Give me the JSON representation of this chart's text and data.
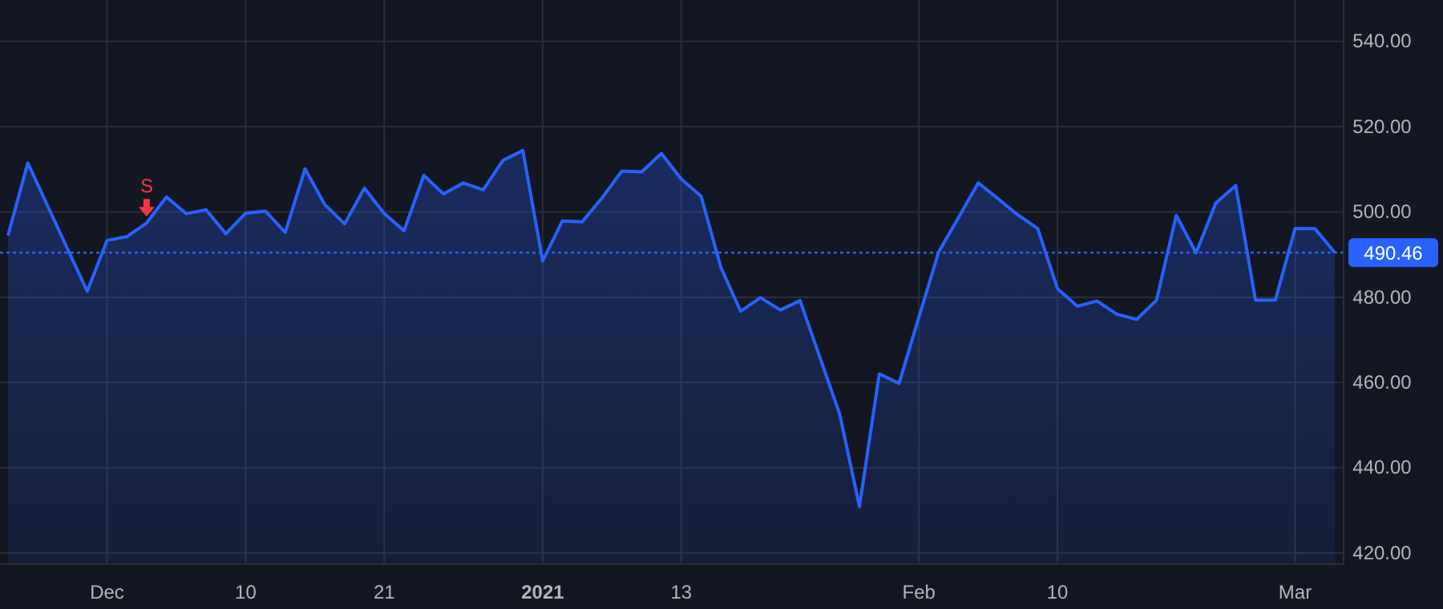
{
  "chart_data": {
    "type": "area",
    "categories": [
      null,
      null,
      null,
      null,
      null,
      "Dec",
      null,
      null,
      null,
      null,
      null,
      null,
      "10",
      null,
      null,
      null,
      null,
      null,
      null,
      "21",
      null,
      null,
      null,
      null,
      null,
      null,
      null,
      "2021",
      null,
      null,
      null,
      null,
      null,
      null,
      "13",
      null,
      null,
      null,
      null,
      null,
      null,
      null,
      null,
      null,
      null,
      null,
      "Feb",
      null,
      null,
      null,
      null,
      null,
      null,
      "10",
      null,
      null,
      null,
      null,
      null,
      null,
      null,
      null,
      null,
      null,
      null,
      "Mar",
      null,
      null
    ],
    "series": [
      {
        "color": "#2962ff",
        "values": [
          494.5,
          511.5,
          501.4,
          491.4,
          481.4,
          493.3,
          494.2,
          497.4,
          503.5,
          499.6,
          500.5,
          494.9,
          499.7,
          500.2,
          495.2,
          510.1,
          501.7,
          497.2,
          505.6,
          499.6,
          495.6,
          508.6,
          504.2,
          506.8,
          505.2,
          512.1,
          514.4,
          488.5,
          497.9,
          497.7,
          503.3,
          509.6,
          509.4,
          513.7,
          507.7,
          503.7,
          487,
          476.7,
          479.9,
          477,
          479.2,
          465.9,
          452.6,
          430.9,
          462,
          459.8,
          475.3,
          490.6,
          498.7,
          506.8,
          503.1,
          499.3,
          496.1,
          482,
          477.9,
          479.1,
          476,
          474.8,
          479.3,
          499.2,
          490.4,
          502.1,
          506.2,
          479.3,
          479.3,
          496.1,
          496.1,
          490.5
        ]
      }
    ],
    "ylim": [
      417.4,
      549.7
    ],
    "yticks": [
      {
        "value": 420,
        "label": "420.00"
      },
      {
        "value": 440,
        "label": "440.00"
      },
      {
        "value": 460,
        "label": "460.00"
      },
      {
        "value": 480,
        "label": "480.00"
      },
      {
        "value": 500,
        "label": "500.00"
      },
      {
        "value": 520,
        "label": "520.00"
      },
      {
        "value": 540,
        "label": "540.00"
      }
    ],
    "grid": true,
    "ref_lines": [
      {
        "axis": "y",
        "value": 490.46,
        "label": "490.46",
        "color": "#2962ff",
        "line_style": "dotted"
      }
    ],
    "annotations": [
      {
        "text": "S",
        "y": 497.4
      }
    ]
  }
}
